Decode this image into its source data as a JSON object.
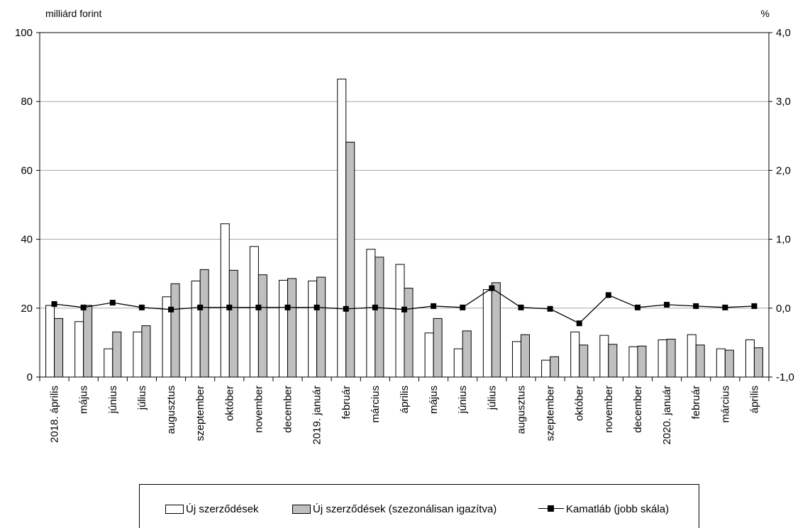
{
  "chart_data": {
    "type": "bar",
    "left_unit": "milliárd forint",
    "right_unit": "%",
    "categories": [
      "2018. április",
      "május",
      "június",
      "július",
      "augusztus",
      "szeptember",
      "október",
      "november",
      "december",
      "2019. január",
      "február",
      "március",
      "április",
      "május",
      "június",
      "július",
      "augusztus",
      "szeptember",
      "október",
      "november",
      "december",
      "2020. január",
      "február",
      "március",
      "április"
    ],
    "series": [
      {
        "name": "Új szerződések",
        "kind": "bar",
        "axis": "left",
        "color": "#ffffff",
        "values": [
          20.8,
          16.1,
          8.2,
          13.1,
          23.3,
          27.9,
          44.5,
          37.9,
          28.1,
          27.9,
          86.5,
          37.1,
          32.7,
          12.8,
          8.2,
          25.4,
          10.3,
          4.9,
          13.1,
          12.1,
          8.8,
          10.8,
          12.3,
          8.2,
          10.8
        ]
      },
      {
        "name": "Új szerződések (szezonálisan igazítva)",
        "kind": "bar",
        "axis": "left",
        "color": "#bfbfbf",
        "values": [
          17.0,
          20.8,
          13.1,
          14.9,
          27.1,
          31.2,
          31.0,
          29.7,
          28.6,
          29.0,
          68.2,
          34.8,
          25.8,
          17.0,
          13.4,
          27.4,
          12.3,
          5.9,
          9.3,
          9.5,
          9.0,
          11.0,
          9.3,
          7.8,
          8.5
        ]
      },
      {
        "name": "Kamatláb (jobb skála)",
        "kind": "line",
        "axis": "right",
        "color": "#000000",
        "values": [
          0.06,
          0.01,
          0.08,
          0.01,
          -0.02,
          0.01,
          0.01,
          0.01,
          0.01,
          0.01,
          -0.01,
          0.01,
          -0.02,
          0.03,
          0.01,
          0.29,
          0.01,
          -0.01,
          -0.22,
          0.19,
          0.01,
          0.05,
          0.03,
          0.01,
          0.03
        ]
      }
    ],
    "y_left": {
      "min": 0,
      "max": 100,
      "ticks": [
        0,
        20,
        40,
        60,
        80,
        100
      ],
      "tick_labels": [
        "0",
        "20",
        "40",
        "60",
        "80",
        "100"
      ]
    },
    "y_right": {
      "min": -1.0,
      "max": 4.0,
      "ticks": [
        -1.0,
        0.0,
        1.0,
        2.0,
        3.0,
        4.0
      ],
      "tick_labels": [
        "-1,0",
        "0,0",
        "1,0",
        "2,0",
        "3,0",
        "4,0"
      ]
    },
    "grid": true,
    "legend_position": "bottom"
  }
}
